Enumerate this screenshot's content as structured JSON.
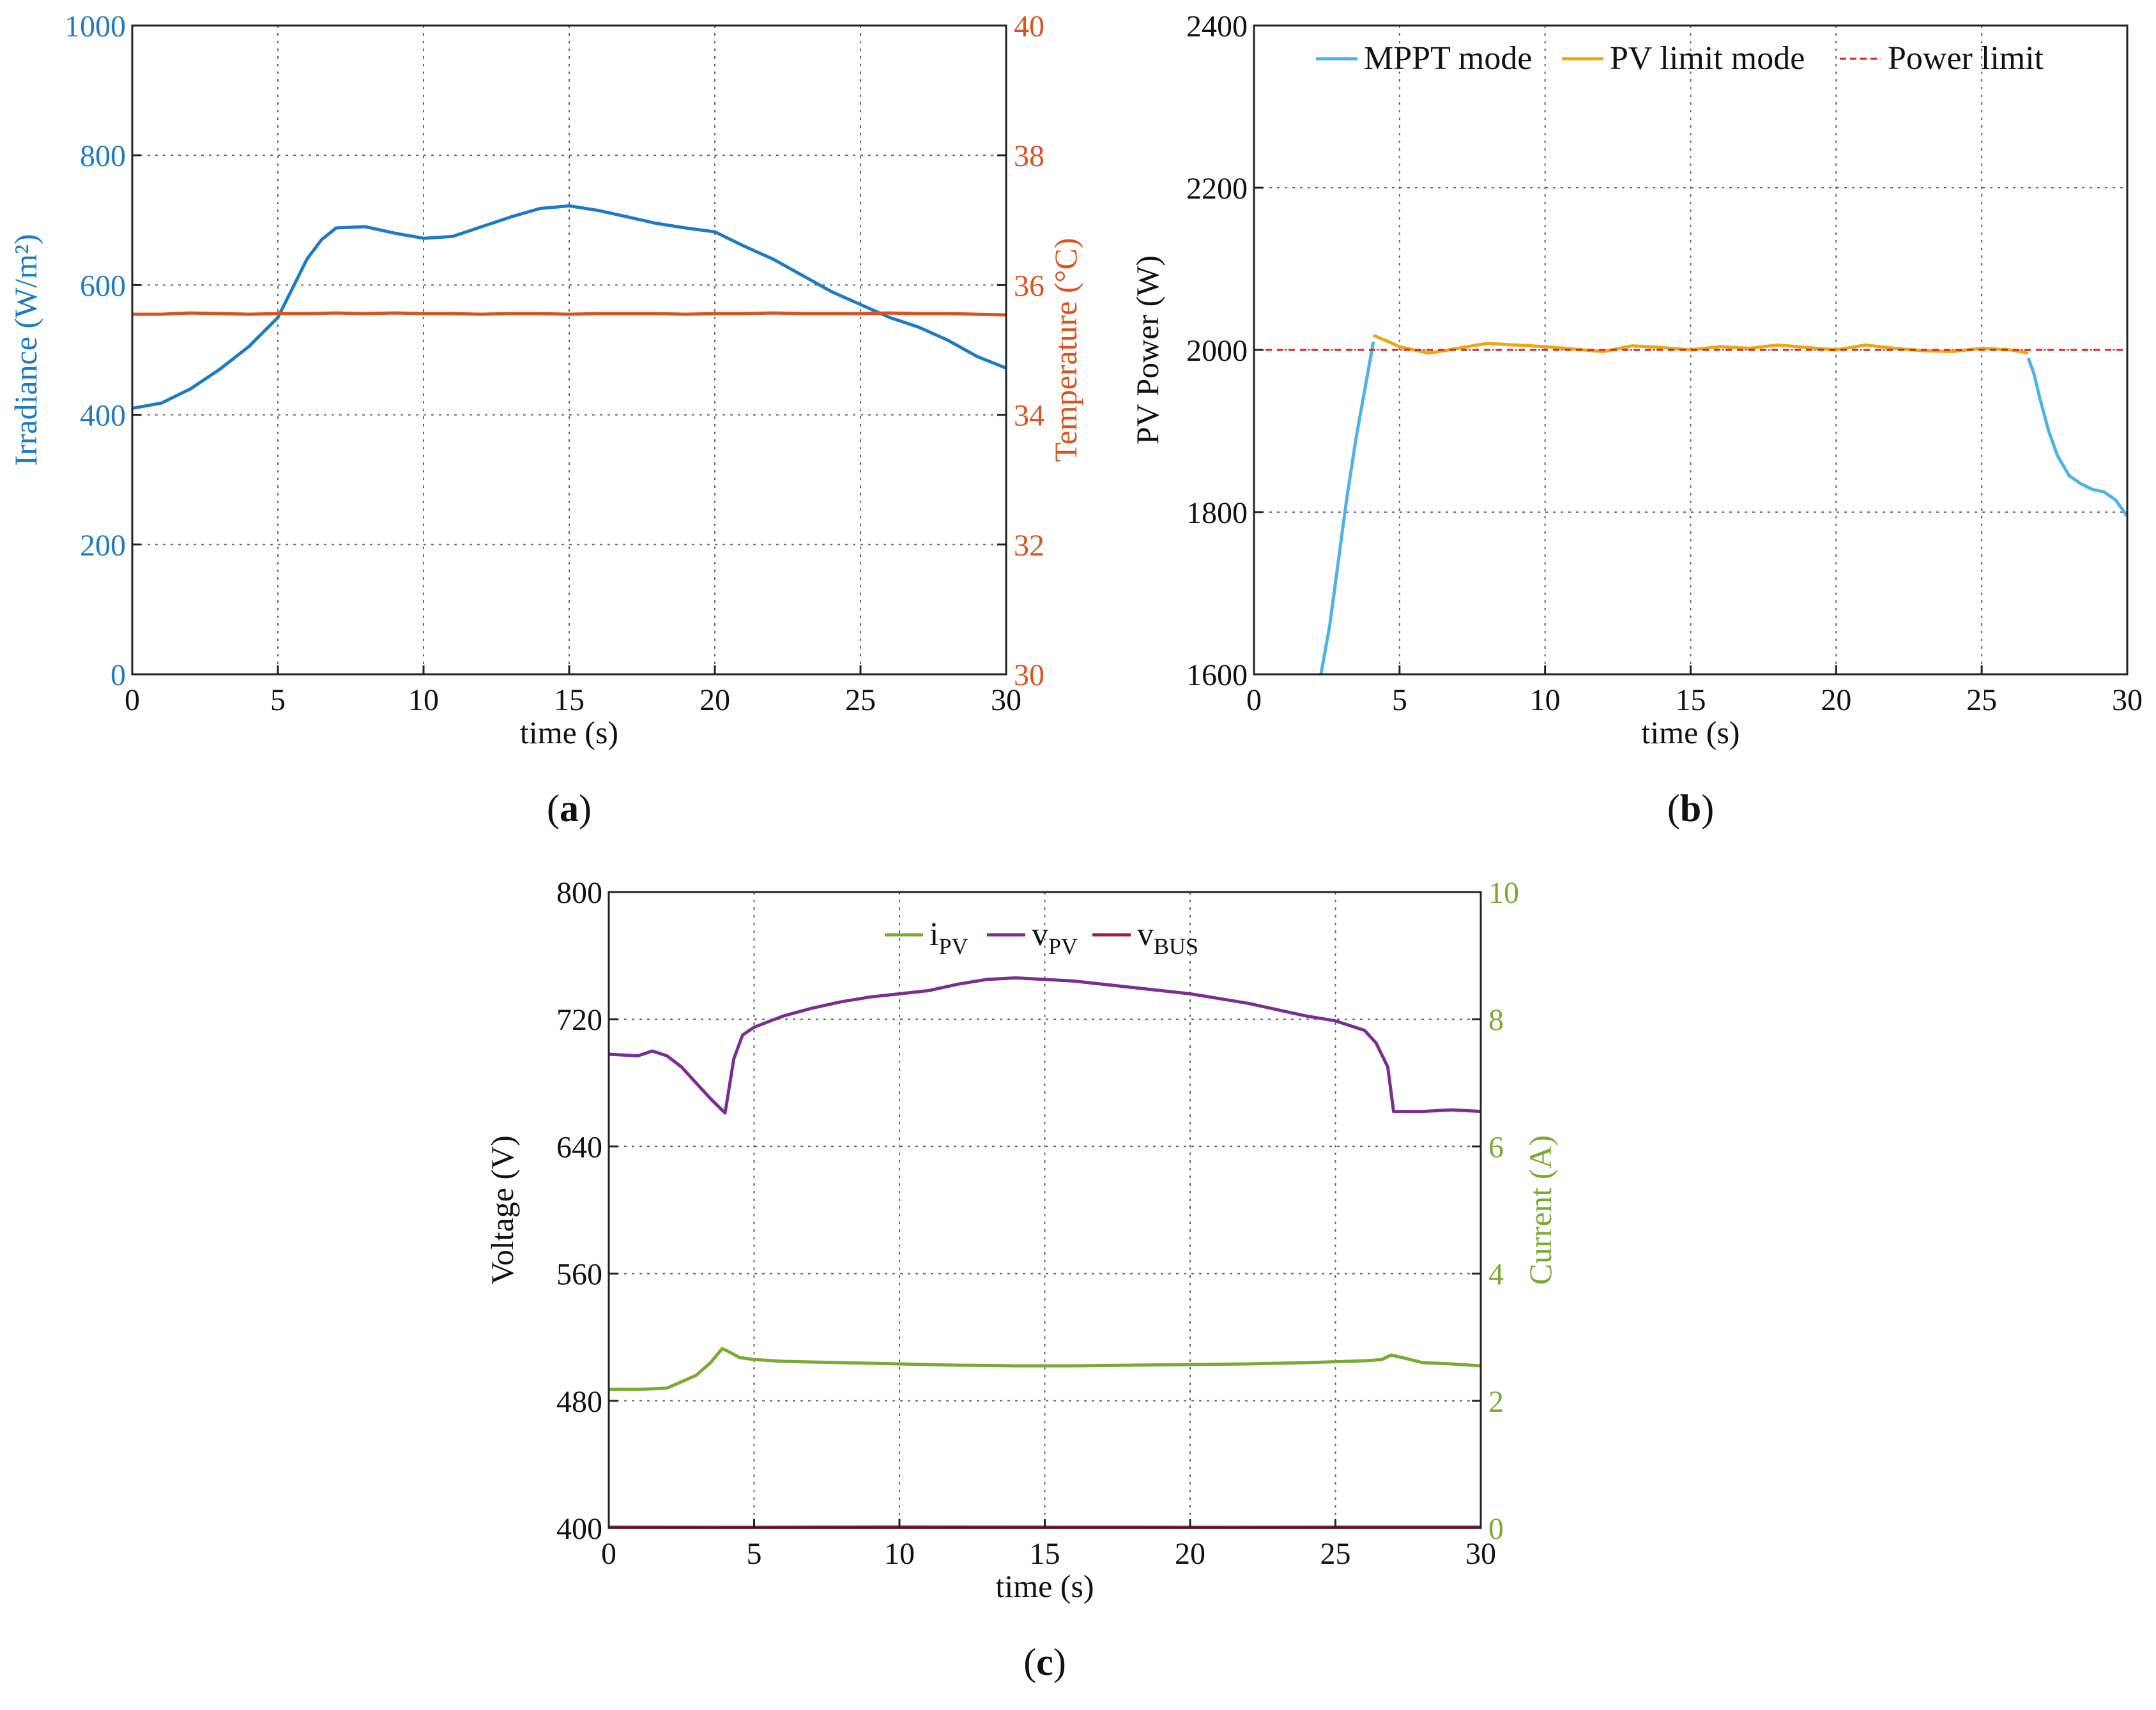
{
  "chart_data": [
    {
      "id": "a",
      "type": "line",
      "caption": "a",
      "xlabel": "time (s)",
      "ylabel": "Irradiance (W/m²)",
      "ylabel_right": "Temperature (°C)",
      "xlim": [
        0,
        30
      ],
      "ylim": [
        0,
        1000
      ],
      "ylim_right": [
        30,
        40
      ],
      "xticks": [
        "0",
        "5",
        "10",
        "15",
        "20",
        "25",
        "30"
      ],
      "yticks": [
        "0",
        "200",
        "400",
        "600",
        "800",
        "1000"
      ],
      "yticks_right": [
        "30",
        "32",
        "34",
        "36",
        "38",
        "40"
      ],
      "grid": true,
      "colors": {
        "left_axis": "#1f7bc1",
        "right_axis": "#d9531e"
      },
      "series": [
        {
          "name": "Irradiance",
          "axis": "left",
          "color": "#1f7bc1",
          "x": [
            0,
            1,
            2,
            3,
            4,
            5,
            6,
            6.5,
            7,
            8,
            9,
            10,
            11,
            12,
            13,
            14,
            15,
            16,
            17,
            18,
            19,
            20,
            21,
            22,
            23,
            24,
            25,
            26,
            27,
            28,
            29,
            30
          ],
          "y": [
            410,
            418,
            440,
            470,
            505,
            550,
            640,
            670,
            688,
            690,
            680,
            672,
            675,
            690,
            705,
            718,
            722,
            715,
            705,
            695,
            688,
            682,
            660,
            640,
            615,
            590,
            570,
            550,
            535,
            515,
            490,
            472
          ]
        },
        {
          "name": "Temperature",
          "axis": "right",
          "color": "#d9531e",
          "x": [
            0,
            1,
            2,
            3,
            4,
            5,
            6,
            7,
            8,
            9,
            10,
            11,
            12,
            13,
            14,
            15,
            16,
            17,
            18,
            19,
            20,
            21,
            22,
            23,
            24,
            25,
            26,
            27,
            28,
            29,
            30
          ],
          "y": [
            35.55,
            35.55,
            35.57,
            35.56,
            35.55,
            35.56,
            35.56,
            35.57,
            35.56,
            35.57,
            35.56,
            35.56,
            35.55,
            35.56,
            35.56,
            35.55,
            35.56,
            35.56,
            35.56,
            35.55,
            35.56,
            35.56,
            35.57,
            35.56,
            35.56,
            35.56,
            35.57,
            35.56,
            35.56,
            35.55,
            35.54
          ]
        }
      ]
    },
    {
      "id": "b",
      "type": "line",
      "caption": "b",
      "xlabel": "time (s)",
      "ylabel": "PV Power (W)",
      "xlim": [
        0,
        30
      ],
      "ylim": [
        1600,
        2400
      ],
      "xticks": [
        "0",
        "5",
        "10",
        "15",
        "20",
        "25",
        "30"
      ],
      "yticks": [
        "1600",
        "1800",
        "2000",
        "2200",
        "2400"
      ],
      "grid": true,
      "legend": [
        "MPPT mode",
        "PV limit mode",
        "Power limit"
      ],
      "legend_position": "top",
      "series": [
        {
          "name": "MPPT mode",
          "color": "#4db3e6",
          "x": [
            2.3,
            2.6,
            2.9,
            3.2,
            3.5,
            3.8,
            4.0,
            4.1
          ],
          "y": [
            1600,
            1660,
            1740,
            1820,
            1890,
            1950,
            1990,
            2010
          ],
          "x2": [
            26.6,
            26.8,
            27.0,
            27.3,
            27.6,
            28.0,
            28.4,
            28.8,
            29.2,
            29.6,
            30.0
          ],
          "y2": [
            1990,
            1970,
            1940,
            1900,
            1870,
            1845,
            1835,
            1828,
            1825,
            1815,
            1795
          ]
        },
        {
          "name": "PV limit mode",
          "color": "#e8a817",
          "x": [
            4.1,
            4.5,
            5.0,
            6.0,
            7.0,
            8.0,
            9.0,
            10.0,
            11.0,
            12.0,
            13.0,
            14.0,
            15.0,
            16.0,
            17.0,
            18.0,
            19.0,
            20.0,
            21.0,
            22.0,
            23.0,
            24.0,
            25.0,
            26.0,
            26.6
          ],
          "y": [
            2018,
            2012,
            2004,
            1996,
            2002,
            2008,
            2006,
            2004,
            2001,
            1998,
            2005,
            2003,
            2000,
            2004,
            2002,
            2006,
            2003,
            2000,
            2006,
            2002,
            1999,
            1998,
            2002,
            2000,
            1996
          ]
        },
        {
          "name": "Power limit",
          "color": "#e02020",
          "x": [
            0,
            30
          ],
          "y": [
            2000,
            2000
          ]
        }
      ]
    },
    {
      "id": "c",
      "type": "line",
      "caption": "c",
      "xlabel": "time (s)",
      "ylabel": "Voltage (V)",
      "ylabel_right": "Current (A)",
      "xlim": [
        0,
        30
      ],
      "ylim": [
        400,
        800
      ],
      "ylim_right": [
        0,
        10
      ],
      "xticks": [
        "0",
        "5",
        "10",
        "15",
        "20",
        "25",
        "30"
      ],
      "yticks": [
        "400",
        "480",
        "560",
        "640",
        "720",
        "800"
      ],
      "yticks_right": [
        "0",
        "2",
        "4",
        "6",
        "8",
        "10"
      ],
      "grid": true,
      "colors": {
        "right_axis": "#79aa32"
      },
      "legend_position": "top",
      "series": [
        {
          "name": "i",
          "sub": "PV",
          "axis": "right",
          "color": "#79aa32",
          "x": [
            0,
            1,
            2,
            3,
            3.5,
            3.9,
            4.1,
            4.5,
            5,
            6,
            8,
            10,
            12,
            14,
            16,
            18,
            20,
            22,
            24,
            26,
            26.6,
            26.9,
            27.3,
            28,
            29,
            30
          ],
          "y": [
            2.18,
            2.18,
            2.2,
            2.4,
            2.6,
            2.82,
            2.78,
            2.68,
            2.65,
            2.62,
            2.6,
            2.58,
            2.56,
            2.55,
            2.55,
            2.56,
            2.57,
            2.58,
            2.6,
            2.63,
            2.65,
            2.72,
            2.68,
            2.6,
            2.58,
            2.55
          ]
        },
        {
          "name": "v",
          "sub": "PV",
          "axis": "left",
          "color": "#7b2e92",
          "x": [
            0,
            1,
            1.5,
            2,
            2.5,
            3,
            3.5,
            4.0,
            4.3,
            4.6,
            5,
            6,
            7,
            8,
            9,
            10,
            11,
            12,
            13,
            14,
            15,
            16,
            17,
            18,
            19,
            20,
            21,
            22,
            23,
            24,
            25,
            26,
            26.4,
            26.8,
            27.0,
            28,
            29,
            30
          ],
          "y": [
            698,
            697,
            700,
            697,
            690,
            680,
            670,
            661,
            695,
            710,
            715,
            722,
            727,
            731,
            734,
            736,
            738,
            742,
            745,
            746,
            745,
            744,
            742,
            740,
            738,
            736,
            733,
            730,
            726,
            722,
            719,
            713,
            705,
            690,
            662,
            662,
            663,
            662
          ]
        },
        {
          "name": "v",
          "sub": "BUS",
          "axis": "left",
          "color": "#a01c34",
          "x": [
            0,
            5,
            10,
            15,
            20,
            25,
            30
          ],
          "y": [
            400.5,
            400.4,
            400.6,
            400.5,
            400.4,
            400.5,
            400.5
          ]
        }
      ]
    }
  ]
}
